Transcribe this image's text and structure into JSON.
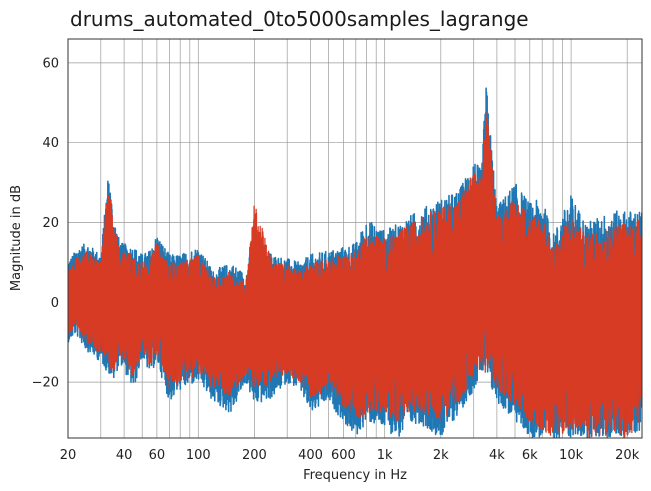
{
  "chart_data": {
    "type": "line",
    "title": "drums_automated_0to5000samples_lagrange",
    "xlabel": "Frequency in Hz",
    "ylabel": "Magnitude in dB",
    "xscale": "log",
    "xlim": [
      20,
      24000
    ],
    "ylim": [
      -34,
      66
    ],
    "xticks": [
      20,
      40,
      60,
      100,
      200,
      400,
      600,
      1000,
      2000,
      4000,
      6000,
      10000,
      20000
    ],
    "xtick_labels": [
      "20",
      "40",
      "60",
      "100",
      "200",
      "400",
      "600",
      "1k",
      "2k",
      "4k",
      "6k",
      "10k",
      "20k"
    ],
    "yticks": [
      -20,
      0,
      20,
      40,
      60
    ],
    "ytick_labels": [
      "−20",
      "0",
      "20",
      "40",
      "60"
    ],
    "grid": true,
    "legend": "none",
    "series": [
      {
        "color": "#1f77b4",
        "envelope": {
          "x": [
            20,
            22,
            25,
            30,
            33,
            35,
            38,
            45,
            50,
            55,
            60,
            70,
            80,
            100,
            120,
            150,
            180,
            200,
            250,
            300,
            350,
            400,
            500,
            600,
            700,
            800,
            1000,
            1200,
            1500,
            2000,
            2500,
            3000,
            3300,
            3500,
            4000,
            5000,
            6000,
            7000,
            8000,
            10000,
            12000,
            15000,
            18000,
            20000,
            24000
          ],
          "upper": [
            10,
            13,
            15,
            12,
            33,
            22,
            15,
            14,
            12,
            13,
            17,
            12,
            12,
            14,
            8,
            10,
            7,
            18,
            12,
            11,
            10,
            12,
            13,
            14,
            15,
            21,
            18,
            20,
            23,
            26,
            28,
            36,
            33,
            55,
            24,
            30,
            25,
            26,
            17,
            27,
            20,
            22,
            23,
            23,
            23
          ],
          "lower": [
            -10,
            -8,
            -12,
            -15,
            -18,
            -20,
            -15,
            -22,
            -14,
            -18,
            -15,
            -25,
            -22,
            -20,
            -25,
            -28,
            -20,
            -26,
            -24,
            -20,
            -22,
            -28,
            -25,
            -30,
            -34,
            -30,
            -32,
            -34,
            -30,
            -34,
            -28,
            -22,
            -18,
            -20,
            -25,
            -30,
            -34,
            -34,
            -34,
            -34,
            -34,
            -34,
            -34,
            -34,
            -32
          ]
        }
      },
      {
        "color": "#d73b24",
        "envelope": {
          "x": [
            20,
            22,
            25,
            30,
            33,
            35,
            38,
            45,
            50,
            55,
            60,
            70,
            80,
            100,
            120,
            150,
            180,
            200,
            250,
            300,
            350,
            400,
            500,
            600,
            700,
            800,
            1000,
            1200,
            1500,
            2000,
            2500,
            3000,
            3300,
            3500,
            4000,
            5000,
            6000,
            7000,
            8000,
            10000,
            12000,
            15000,
            18000,
            20000,
            24000
          ],
          "upper": [
            8,
            11,
            13,
            10,
            31,
            20,
            13,
            12,
            10,
            11,
            15,
            10,
            10,
            12,
            6,
            8,
            5,
            25,
            10,
            10,
            8,
            10,
            11,
            12,
            13,
            18,
            16,
            18,
            21,
            24,
            26,
            33,
            31,
            50,
            22,
            26,
            22,
            22,
            14,
            22,
            17,
            19,
            20,
            20,
            21
          ],
          "lower": [
            -8,
            -6,
            -10,
            -13,
            -16,
            -18,
            -13,
            -20,
            -12,
            -16,
            -13,
            -22,
            -20,
            -18,
            -22,
            -24,
            -18,
            -22,
            -20,
            -18,
            -20,
            -24,
            -22,
            -26,
            -30,
            -28,
            -28,
            -30,
            -27,
            -30,
            -25,
            -20,
            -16,
            -18,
            -22,
            -26,
            -30,
            -32,
            -34,
            -32,
            -34,
            -34,
            -34,
            -34,
            -30
          ]
        }
      }
    ]
  }
}
